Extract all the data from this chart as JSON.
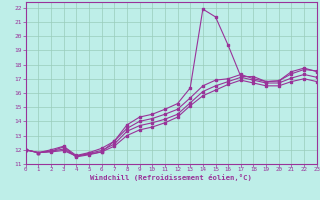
{
  "xlabel": "Windchill (Refroidissement éolien,°C)",
  "bg_color": "#beeee8",
  "grid_color": "#99ccbb",
  "line_color": "#993399",
  "xlim": [
    0,
    23
  ],
  "ylim": [
    11,
    22.4
  ],
  "xticks": [
    0,
    1,
    2,
    3,
    4,
    5,
    6,
    7,
    8,
    9,
    10,
    11,
    12,
    13,
    14,
    15,
    16,
    17,
    18,
    19,
    20,
    21,
    22,
    23
  ],
  "yticks": [
    11,
    12,
    13,
    14,
    15,
    16,
    17,
    18,
    19,
    20,
    21,
    22
  ],
  "lines": [
    [
      12.0,
      11.8,
      11.9,
      12.2,
      11.5,
      11.65,
      11.85,
      12.6,
      13.75,
      14.3,
      14.5,
      14.85,
      15.25,
      16.35,
      21.9,
      21.35,
      19.35,
      17.15,
      17.15,
      16.8,
      16.85,
      17.5,
      17.75,
      17.5
    ],
    [
      12.0,
      11.8,
      11.9,
      12.05,
      11.55,
      11.75,
      11.95,
      12.4,
      13.3,
      13.7,
      13.9,
      14.15,
      14.5,
      15.3,
      16.1,
      16.5,
      16.8,
      17.1,
      16.9,
      16.7,
      16.7,
      17.05,
      17.3,
      17.1
    ],
    [
      12.0,
      11.8,
      11.85,
      11.95,
      11.55,
      11.7,
      11.85,
      12.25,
      13.0,
      13.4,
      13.6,
      13.9,
      14.3,
      15.1,
      15.8,
      16.2,
      16.6,
      16.9,
      16.7,
      16.5,
      16.5,
      16.8,
      17.0,
      16.8
    ],
    [
      12.0,
      11.8,
      12.0,
      12.25,
      11.6,
      11.8,
      12.1,
      12.6,
      13.5,
      14.0,
      14.2,
      14.5,
      14.85,
      15.65,
      16.5,
      16.9,
      17.0,
      17.3,
      17.0,
      16.8,
      16.85,
      17.35,
      17.65,
      17.55
    ]
  ]
}
